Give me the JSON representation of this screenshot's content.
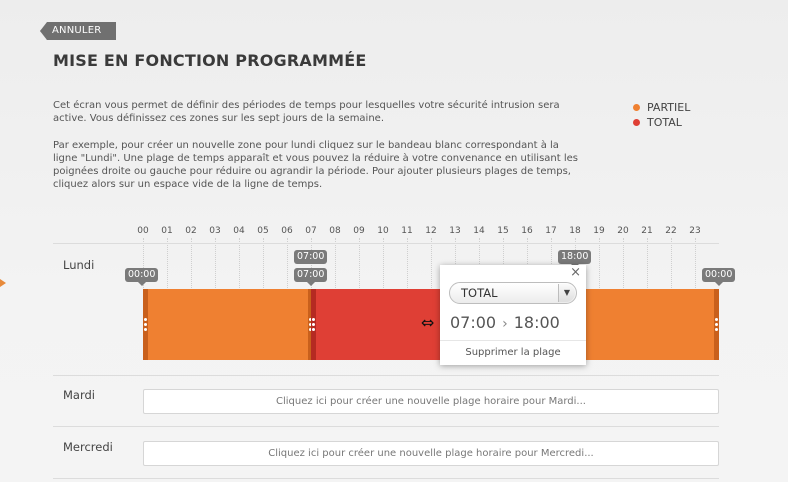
{
  "header": {
    "cancel_label": "ANNULER",
    "title": "MISE EN FONCTION PROGRAMMÉE"
  },
  "description": {
    "paragraph1": "Cet écran vous permet de définir des périodes de temps pour lesquelles votre sécurité intrusion sera active. Vous définissez ces zones sur les sept jours de la semaine.",
    "paragraph2": "Par exemple, pour créer un nouvelle zone pour lundi cliquez sur le bandeau blanc correspondant à la ligne \"Lundi\". Une plage de temps apparaît et vous pouvez la réduire à votre convenance en utilisant les poignées droite ou gauche pour réduire ou agrandir la période. Pour ajouter plusieurs plages de temps, cliquez alors sur un espace vide de la ligne de temps."
  },
  "legend": [
    {
      "label": "PARTIEL",
      "color": "#ef8031"
    },
    {
      "label": "TOTAL",
      "color": "#df3f35"
    }
  ],
  "hours": [
    "00",
    "01",
    "02",
    "03",
    "04",
    "05",
    "06",
    "07",
    "08",
    "09",
    "10",
    "11",
    "12",
    "13",
    "14",
    "15",
    "16",
    "17",
    "18",
    "19",
    "20",
    "21",
    "22",
    "23"
  ],
  "days": [
    {
      "name": "Lundi",
      "ranges": [
        {
          "mode": "PARTIEL",
          "start": "00:00",
          "end": "07:00"
        },
        {
          "mode": "TOTAL",
          "start": "07:00",
          "end": "18:00"
        },
        {
          "mode": "PARTIEL",
          "start": "18:00",
          "end": "00:00"
        }
      ],
      "tags": {
        "start": "00:00",
        "end": "00:00",
        "at07_top": "07:00",
        "at07_bottom": "07:00",
        "at18": "18:00"
      }
    },
    {
      "name": "Mardi",
      "create_prompt": "Cliquez ici pour créer une nouvelle plage horaire pour Mardi..."
    },
    {
      "name": "Mercredi",
      "create_prompt": "Cliquez ici pour créer une nouvelle plage horaire pour Mercredi..."
    }
  ],
  "popup": {
    "close": "×",
    "mode_value": "TOTAL",
    "start": "07:00",
    "separator": "›",
    "end": "18:00",
    "delete_label": "Supprimer la plage"
  },
  "icons": {
    "close": "close-icon",
    "dropdown": "chevron-down-icon",
    "resize_cursor": "resize-horizontal-icon"
  }
}
